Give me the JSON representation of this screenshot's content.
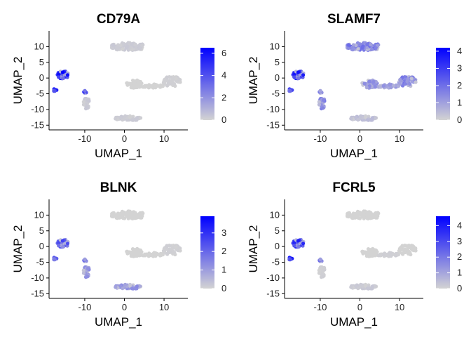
{
  "figure": {
    "panels": [
      {
        "title": "CD79A",
        "xlabel": "UMAP_1",
        "ylabel": "UMAP_2"
      },
      {
        "title": "SLAMF7",
        "xlabel": "UMAP_1",
        "ylabel": "UMAP_2"
      },
      {
        "title": "BLNK",
        "xlabel": "UMAP_1",
        "ylabel": "UMAP_2"
      },
      {
        "title": "FCRL5",
        "xlabel": "UMAP_1",
        "ylabel": "UMAP_2"
      }
    ]
  },
  "chart_data": [
    {
      "type": "scatter",
      "title": "CD79A",
      "xlabel": "UMAP_1",
      "ylabel": "UMAP_2",
      "xlim": [
        -19,
        16
      ],
      "ylim": [
        -16.5,
        15
      ],
      "x_ticks": [
        -10,
        0,
        10
      ],
      "y_ticks": [
        -15,
        -10,
        -5,
        0,
        5,
        10
      ],
      "color_scale": {
        "low": "#d3d3d3",
        "high": "#0000ff",
        "range": [
          0,
          6.5
        ],
        "ticks": [
          0,
          2,
          4,
          6
        ]
      },
      "legend": "right",
      "grid": false,
      "clusters": [
        {
          "cx": -15.5,
          "cy": 1.0,
          "rx": 1.4,
          "ry": 1.3,
          "n": 60,
          "expr": 0.8
        },
        {
          "cx": -17.5,
          "cy": -3.8,
          "rx": 0.5,
          "ry": 0.5,
          "n": 8,
          "expr": 0.75
        },
        {
          "cx": -10.0,
          "cy": -4.5,
          "rx": 0.4,
          "ry": 0.5,
          "n": 6,
          "expr": 0.7
        },
        {
          "cx": -9.5,
          "cy": -8.0,
          "rx": 0.8,
          "ry": 1.8,
          "n": 25,
          "expr": 0.05
        },
        {
          "cx": 1.0,
          "cy": 10.0,
          "rx": 4.5,
          "ry": 1.3,
          "n": 120,
          "expr": 0.04
        },
        {
          "cx": 2.5,
          "cy": -2.0,
          "rx": 2.2,
          "ry": 1.4,
          "n": 40,
          "expr": 0.0
        },
        {
          "cx": 7.0,
          "cy": -2.5,
          "rx": 3.0,
          "ry": 0.6,
          "n": 30,
          "expr": 0.0
        },
        {
          "cx": 12.0,
          "cy": -1.0,
          "rx": 2.2,
          "ry": 1.8,
          "n": 45,
          "expr": 0.02
        },
        {
          "cx": 1.0,
          "cy": -12.8,
          "rx": 3.5,
          "ry": 0.7,
          "n": 45,
          "expr": 0.04
        }
      ]
    },
    {
      "type": "scatter",
      "title": "SLAMF7",
      "xlabel": "UMAP_1",
      "ylabel": "UMAP_2",
      "xlim": [
        -19,
        16
      ],
      "ylim": [
        -16.5,
        15
      ],
      "x_ticks": [
        -10,
        0,
        10
      ],
      "y_ticks": [
        -15,
        -10,
        -5,
        0,
        5,
        10
      ],
      "color_scale": {
        "low": "#d3d3d3",
        "high": "#0000ff",
        "range": [
          0,
          4.2
        ],
        "ticks": [
          0,
          1,
          2,
          3,
          4
        ]
      },
      "legend": "right",
      "grid": false,
      "clusters": [
        {
          "cx": -15.5,
          "cy": 1.0,
          "rx": 1.4,
          "ry": 1.3,
          "n": 60,
          "expr": 0.75
        },
        {
          "cx": -17.5,
          "cy": -3.8,
          "rx": 0.5,
          "ry": 0.5,
          "n": 8,
          "expr": 0.6
        },
        {
          "cx": -10.0,
          "cy": -4.5,
          "rx": 0.4,
          "ry": 0.5,
          "n": 6,
          "expr": 0.35
        },
        {
          "cx": -9.5,
          "cy": -8.0,
          "rx": 0.8,
          "ry": 1.8,
          "n": 25,
          "expr": 0.35
        },
        {
          "cx": 1.0,
          "cy": 10.0,
          "rx": 4.5,
          "ry": 1.3,
          "n": 120,
          "expr": 0.4
        },
        {
          "cx": 2.5,
          "cy": -2.0,
          "rx": 2.2,
          "ry": 1.4,
          "n": 40,
          "expr": 0.3
        },
        {
          "cx": 7.0,
          "cy": -2.5,
          "rx": 3.0,
          "ry": 0.6,
          "n": 30,
          "expr": 0.25
        },
        {
          "cx": 12.0,
          "cy": -1.0,
          "rx": 2.2,
          "ry": 1.8,
          "n": 45,
          "expr": 0.4
        },
        {
          "cx": 1.0,
          "cy": -12.8,
          "rx": 3.5,
          "ry": 0.7,
          "n": 45,
          "expr": 0.1
        }
      ]
    },
    {
      "type": "scatter",
      "title": "BLNK",
      "xlabel": "UMAP_1",
      "ylabel": "UMAP_2",
      "xlim": [
        -19,
        16
      ],
      "ylim": [
        -16.5,
        15
      ],
      "x_ticks": [
        -10,
        0,
        10
      ],
      "y_ticks": [
        -15,
        -10,
        -5,
        0,
        5,
        10
      ],
      "color_scale": {
        "low": "#d3d3d3",
        "high": "#0000ff",
        "range": [
          0,
          3.9
        ],
        "ticks": [
          0,
          1,
          2,
          3
        ]
      },
      "legend": "right",
      "grid": false,
      "clusters": [
        {
          "cx": -15.5,
          "cy": 1.0,
          "rx": 1.4,
          "ry": 1.3,
          "n": 60,
          "expr": 0.55
        },
        {
          "cx": -17.5,
          "cy": -3.8,
          "rx": 0.5,
          "ry": 0.5,
          "n": 8,
          "expr": 0.5
        },
        {
          "cx": -10.0,
          "cy": -4.5,
          "rx": 0.4,
          "ry": 0.5,
          "n": 6,
          "expr": 0.4
        },
        {
          "cx": -9.5,
          "cy": -8.0,
          "rx": 0.8,
          "ry": 1.8,
          "n": 25,
          "expr": 0.3
        },
        {
          "cx": 1.0,
          "cy": 10.0,
          "rx": 4.5,
          "ry": 1.3,
          "n": 120,
          "expr": 0.0
        },
        {
          "cx": 2.5,
          "cy": -2.0,
          "rx": 2.2,
          "ry": 1.4,
          "n": 40,
          "expr": 0.0
        },
        {
          "cx": 7.0,
          "cy": -2.5,
          "rx": 3.0,
          "ry": 0.6,
          "n": 30,
          "expr": 0.0
        },
        {
          "cx": 12.0,
          "cy": -1.0,
          "rx": 2.2,
          "ry": 1.8,
          "n": 45,
          "expr": 0.02
        },
        {
          "cx": 1.0,
          "cy": -12.8,
          "rx": 3.5,
          "ry": 0.7,
          "n": 45,
          "expr": 0.3
        }
      ]
    },
    {
      "type": "scatter",
      "title": "FCRL5",
      "xlabel": "UMAP_1",
      "ylabel": "UMAP_2",
      "xlim": [
        -19,
        16
      ],
      "ylim": [
        -16.5,
        15
      ],
      "x_ticks": [
        -10,
        0,
        10
      ],
      "y_ticks": [
        -15,
        -10,
        -5,
        0,
        5,
        10
      ],
      "color_scale": {
        "low": "#d3d3d3",
        "high": "#0000ff",
        "range": [
          0,
          4.6
        ],
        "ticks": [
          0,
          1,
          2,
          3,
          4
        ]
      },
      "legend": "right",
      "grid": false,
      "clusters": [
        {
          "cx": -15.5,
          "cy": 1.0,
          "rx": 1.4,
          "ry": 1.3,
          "n": 60,
          "expr": 0.7
        },
        {
          "cx": -17.5,
          "cy": -3.8,
          "rx": 0.5,
          "ry": 0.5,
          "n": 8,
          "expr": 0.75
        },
        {
          "cx": -10.0,
          "cy": -4.5,
          "rx": 0.4,
          "ry": 0.5,
          "n": 6,
          "expr": 0.4
        },
        {
          "cx": -9.5,
          "cy": -8.0,
          "rx": 0.8,
          "ry": 1.8,
          "n": 25,
          "expr": 0.02
        },
        {
          "cx": 1.0,
          "cy": 10.0,
          "rx": 4.5,
          "ry": 1.3,
          "n": 120,
          "expr": 0.0
        },
        {
          "cx": 2.5,
          "cy": -2.0,
          "rx": 2.2,
          "ry": 1.4,
          "n": 40,
          "expr": 0.0
        },
        {
          "cx": 7.0,
          "cy": -2.5,
          "rx": 3.0,
          "ry": 0.6,
          "n": 30,
          "expr": 0.02
        },
        {
          "cx": 12.0,
          "cy": -1.0,
          "rx": 2.2,
          "ry": 1.8,
          "n": 45,
          "expr": 0.0
        },
        {
          "cx": 1.0,
          "cy": -12.8,
          "rx": 3.5,
          "ry": 0.7,
          "n": 45,
          "expr": 0.05
        }
      ]
    }
  ]
}
